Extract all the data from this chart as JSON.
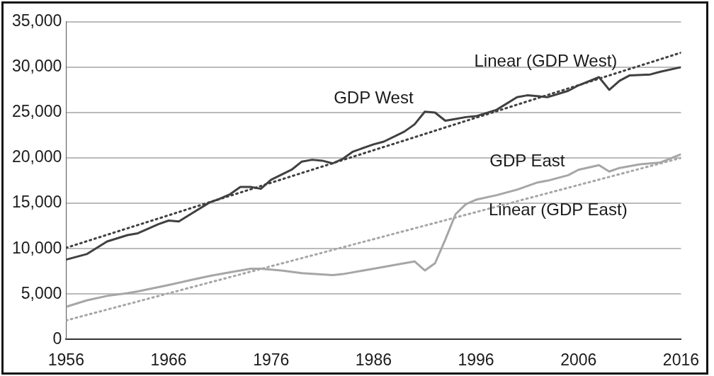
{
  "chart_data": {
    "type": "line",
    "xlim": [
      1956,
      2016
    ],
    "xticks": [
      1956,
      1966,
      1976,
      1986,
      1996,
      2006,
      2016
    ],
    "ylim": [
      0,
      35000
    ],
    "yticks": [
      {
        "value": 0,
        "label": "0"
      },
      {
        "value": 5000,
        "label": "5,000"
      },
      {
        "value": 10000,
        "label": "10,000"
      },
      {
        "value": 15000,
        "label": "15,000"
      },
      {
        "value": 20000,
        "label": "20,000"
      },
      {
        "value": 25000,
        "label": "25,000"
      },
      {
        "value": 30000,
        "label": "30,000"
      },
      {
        "value": 35000,
        "label": "35,000"
      }
    ],
    "grid": "y",
    "legend": false,
    "marker": "none",
    "series": [
      {
        "name": "GDP West",
        "color": "#404040",
        "line_style": "solid",
        "x": [
          1956,
          1958,
          1960,
          1962,
          1963,
          1965,
          1966,
          1967,
          1968,
          1970,
          1971,
          1972,
          1973,
          1974,
          1975,
          1976,
          1978,
          1979,
          1980,
          1981,
          1982,
          1983,
          1984,
          1986,
          1987,
          1989,
          1990,
          1991,
          1992,
          1993,
          1994,
          1995,
          1996,
          1998,
          2000,
          2001,
          2003,
          2005,
          2006,
          2008,
          2009,
          2010,
          2011,
          2013,
          2014,
          2016
        ],
        "values": [
          8800,
          9400,
          10800,
          11500,
          11700,
          12700,
          13100,
          13000,
          13700,
          15100,
          15500,
          16000,
          16800,
          16800,
          16600,
          17600,
          18700,
          19600,
          19800,
          19700,
          19400,
          19900,
          20700,
          21500,
          21800,
          22900,
          23700,
          25100,
          25000,
          24100,
          24300,
          24500,
          24600,
          25300,
          26700,
          26900,
          26700,
          27400,
          28000,
          28900,
          27500,
          28500,
          29100,
          29200,
          29500,
          30000
        ]
      },
      {
        "name": "GDP East",
        "color": "#a6a6a6",
        "line_style": "solid",
        "x": [
          1956,
          1958,
          1960,
          1962,
          1963,
          1966,
          1968,
          1970,
          1972,
          1974,
          1975,
          1977,
          1979,
          1982,
          1983,
          1986,
          1989,
          1990,
          1991,
          1992,
          1993,
          1994,
          1995,
          1996,
          1998,
          2000,
          2002,
          2003,
          2005,
          2006,
          2008,
          2009,
          2010,
          2012,
          2014,
          2016
        ],
        "values": [
          3600,
          4300,
          4800,
          5100,
          5300,
          6000,
          6500,
          7000,
          7400,
          7800,
          7800,
          7600,
          7300,
          7100,
          7200,
          7800,
          8400,
          8600,
          7600,
          8400,
          11000,
          13800,
          14900,
          15400,
          15900,
          16500,
          17300,
          17500,
          18100,
          18700,
          19200,
          18500,
          18900,
          19300,
          19500,
          20400
        ]
      },
      {
        "name": "Linear (GDP West)",
        "color": "#404040",
        "line_style": "dotted",
        "x": [
          1956,
          2016
        ],
        "values": [
          10100,
          31600
        ]
      },
      {
        "name": "Linear (GDP East)",
        "color": "#a6a6a6",
        "line_style": "dotted",
        "x": [
          1956,
          2016
        ],
        "values": [
          2100,
          20000
        ]
      }
    ]
  }
}
